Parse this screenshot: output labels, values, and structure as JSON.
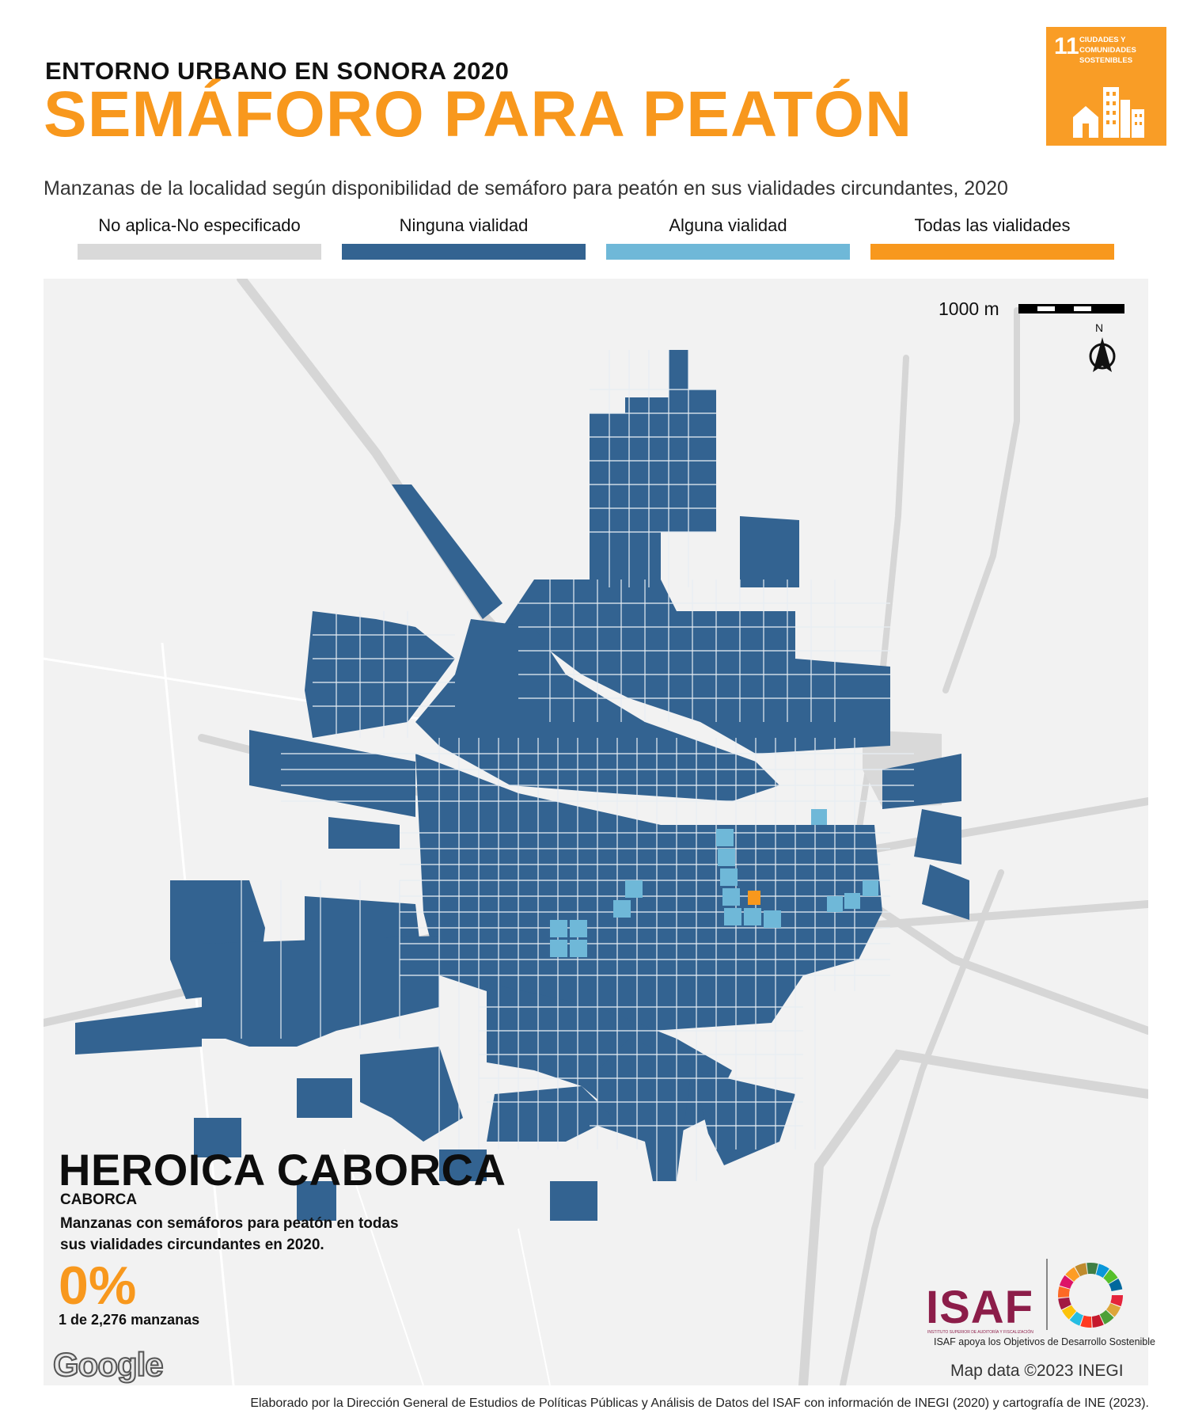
{
  "header": {
    "kicker": "ENTORNO URBANO EN SONORA 2020",
    "title": "SEMÁFORO PARA PEATÓN",
    "subtitle": "Manzanas de la localidad según disponibilidad de semáforo para peatón en sus vialidades circundantes, 2020"
  },
  "sdg_badge": {
    "number": "11",
    "label": "CIUDADES Y COMUNIDADES SOSTENIBLES",
    "color": "#f99d26",
    "icon": "city-buildings-icon"
  },
  "legend": [
    {
      "label": "No aplica-No especificado",
      "color": "#d9d9d9"
    },
    {
      "label": "Ninguna vialidad",
      "color": "#336391"
    },
    {
      "label": "Alguna vialidad",
      "color": "#6fb8d8"
    },
    {
      "label": "Todas las vialidades",
      "color": "#f8981d"
    }
  ],
  "map": {
    "scale_label": "1000 m",
    "north_label": "N",
    "locality": "HEROICA CABORCA",
    "municipality": "CABORCA",
    "description": "Manzanas con semáforos para peatón en todas sus vialidades circundantes en 2020.",
    "percentage": "0%",
    "count": "1 de 2,276 manzanas",
    "google_label": "Google",
    "attribution": "Map data ©2023 INEGI"
  },
  "logos": {
    "isaf": "ISAF",
    "isaf_small": "INSTITUTO SUPERIOR DE AUDITORÍA Y FISCALIZACIÓN",
    "isaf_tagline": "ISAF apoya los Objetivos de Desarrollo Sostenible"
  },
  "footer": "Elaborado por la Dirección General de Estudios de Políticas Públicas y Análisis de Datos del ISAF con información de INEGI (2020) y cartografía de INE (2023)."
}
